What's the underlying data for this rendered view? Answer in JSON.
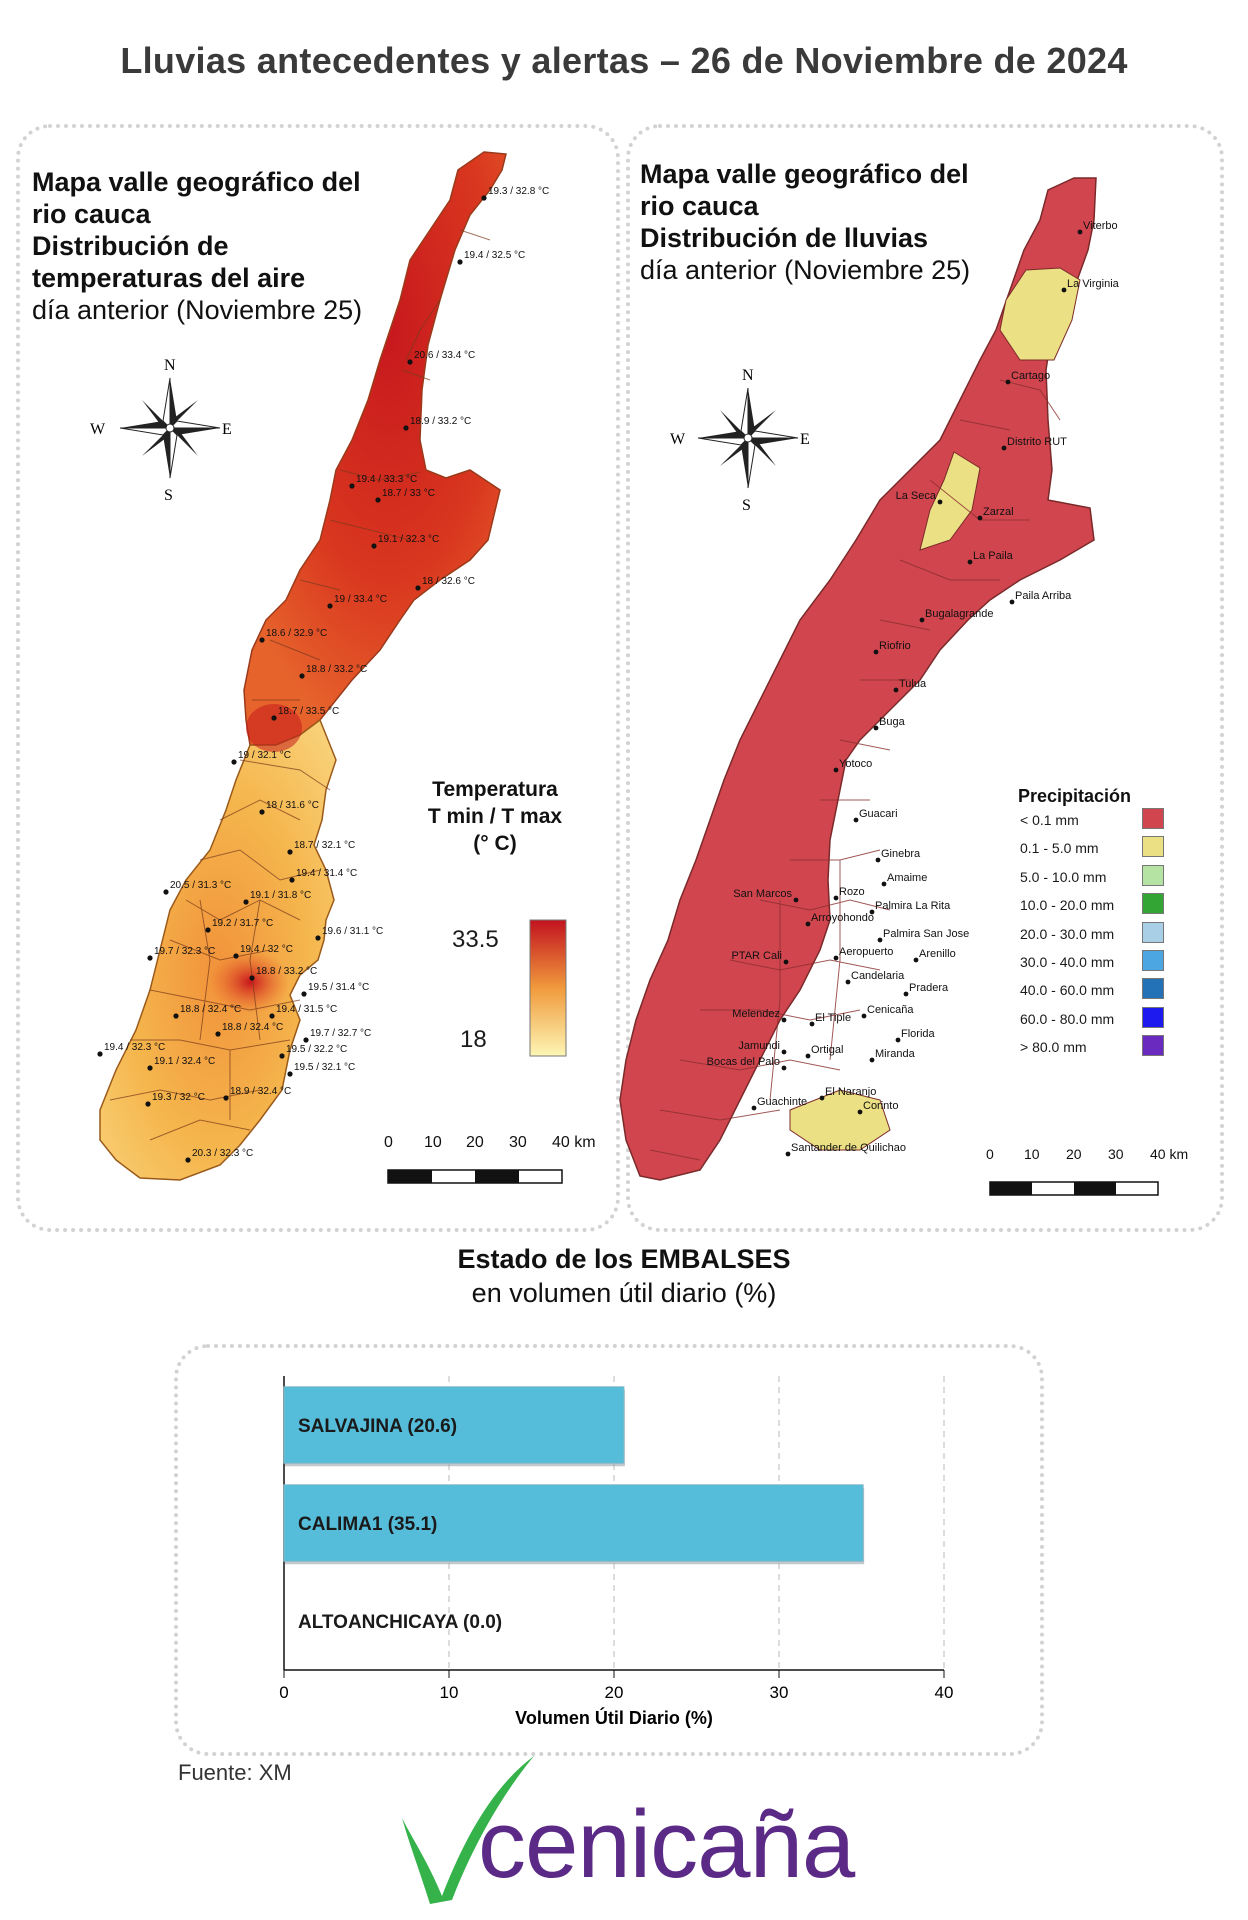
{
  "title": "Lluvias antecedentes y alertas – 26 de Noviembre de 2024",
  "temp_panel": {
    "heading_lines": [
      "Mapa valle geográfico del",
      "rio cauca",
      "Distribución de",
      "temperaturas del aire"
    ],
    "subheading": "día anterior (Noviembre 25)",
    "compass": {
      "n": "N",
      "s": "S",
      "e": "E",
      "w": "W"
    },
    "legend_title_lines": [
      "Temperatura",
      "T min / T max",
      "(° C)"
    ],
    "legend_max": "33.5",
    "legend_min": "18",
    "scale": [
      "0",
      "10",
      "20",
      "30",
      "40 km"
    ],
    "stations": [
      "19.3 / 32.8 °C",
      "19.4 / 32.5 °C",
      "20.6 / 33.4 °C",
      "18.9 / 33.2 °C",
      "19.4 / 33.3 °C",
      "18.7 / 33 °C",
      "19.1 / 32.3 °C",
      "18 / 32.6 °C",
      "19 / 33.4 °C",
      "18.6 / 32.9 °C",
      "18.8 / 33.2 °C",
      "18.7 / 33.5 °C",
      "19 / 32.1 °C",
      "18 / 31.6 °C",
      "18.7 / 32.1 °C",
      "19.4 / 31.4 °C",
      "20.5 / 31.3 °C",
      "19.1 / 31.8 °C",
      "19.2 / 31.7 °C",
      "19.6 / 31.1 °C",
      "19.4 / 32 °C",
      "19.7 / 32.3 °C",
      "18.8 / 33.2 °C",
      "19.5 / 31.4 °C",
      "19.4 / 31.5 °C",
      "18.8 / 32.4 °C",
      "18.8 / 32.4 °C",
      "19.7 / 32.7 °C",
      "19.4 / 32.3 °C",
      "19.5 / 32.2 °C",
      "19.1 / 32.4 °C",
      "19.5 / 32.1 °C",
      "18.9 / 32.4 °C",
      "19.3 / 32 °C",
      "20.3 / 32.3 °C"
    ]
  },
  "rain_panel": {
    "heading_lines": [
      "Mapa valle geográfico del",
      "rio cauca"
    ],
    "heading_bold": "Distribución de lluvias",
    "subheading": "día anterior (Noviembre 25)",
    "compass": {
      "n": "N",
      "s": "S",
      "e": "E",
      "w": "W"
    },
    "legend_title": "Precipitación",
    "legend": [
      {
        "label": "< 0.1 mm",
        "color": "#d1454f"
      },
      {
        "label": "0.1 - 5.0 mm",
        "color": "#ece084"
      },
      {
        "label": "5.0 - 10.0 mm",
        "color": "#b5e3a4"
      },
      {
        "label": "10.0 - 20.0 mm",
        "color": "#33a535"
      },
      {
        "label": "20.0 - 30.0 mm",
        "color": "#a9cfe6"
      },
      {
        "label": "30.0 - 40.0 mm",
        "color": "#4ca6e2"
      },
      {
        "label": "40.0 - 60.0 mm",
        "color": "#2372b8"
      },
      {
        "label": "60.0 - 80.0 mm",
        "color": "#1d1af0"
      },
      {
        "label": "> 80.0 mm",
        "color": "#6a2ac0"
      }
    ],
    "scale": [
      "0",
      "10",
      "20",
      "30",
      "40 km"
    ],
    "places": [
      "Viterbo",
      "La Virginia",
      "Cartago",
      "Distrito RUT",
      "La Seca",
      "Zarzal",
      "La Paila",
      "Paila Arriba",
      "Bugalagrande",
      "Riofrio",
      "Tulua",
      "Buga",
      "Yotoco",
      "Guacari",
      "Ginebra",
      "Amaime",
      "San Marcos",
      "Rozo",
      "Palmira La Rita",
      "Arroyohondo",
      "Palmira San Jose",
      "Aeropuerto",
      "Arenillo",
      "PTAR Cali",
      "Candelaria",
      "Pradera",
      "Melendez",
      "Cenicaña",
      "El Tiple",
      "Florida",
      "Jamundi",
      "Ortigal",
      "Bocas del Palo",
      "Miranda",
      "El Naranjo",
      "Guachinte",
      "Corinto",
      "Santander de Quilichao"
    ]
  },
  "dams": {
    "title_bold": "Estado de los EMBALSES",
    "subtitle": "en volumen útil diario (%)",
    "source": "Fuente: XM"
  },
  "chart_data": {
    "type": "bar",
    "orientation": "horizontal",
    "categories": [
      "SALVAJINA (20.6)",
      "CALIMA1 (35.1)",
      "ALTOANCHICAYA (0.0)"
    ],
    "values": [
      20.6,
      35.1,
      0.0
    ],
    "xlabel": "Volumen Útil Diario (%)",
    "xlim": [
      0,
      40
    ],
    "xticks": [
      "0",
      "10",
      "20",
      "30",
      "40"
    ],
    "grid": "vertical dashed",
    "bar_color": "#55bcd9"
  },
  "logo": {
    "text": "cenicaña",
    "check_color": "#35b34a",
    "text_color": "#5b2a86"
  }
}
